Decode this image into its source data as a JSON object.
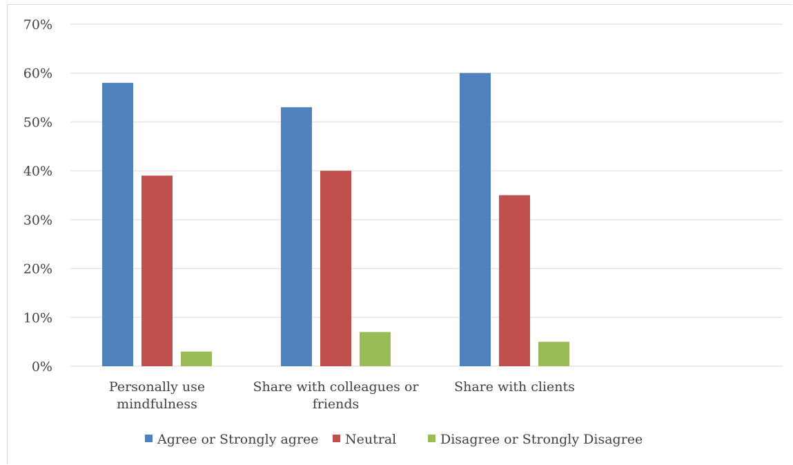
{
  "chart_data": {
    "type": "bar",
    "title": "",
    "xlabel": "",
    "ylabel": "",
    "categories": [
      [
        "Personally use",
        "mindfulness"
      ],
      [
        "Share with colleagues or",
        "friends"
      ],
      [
        "Share with clients"
      ]
    ],
    "series": [
      {
        "name": "Agree or Strongly agree",
        "color": "#4f81bd",
        "values": [
          58,
          53,
          60
        ]
      },
      {
        "name": "Neutral",
        "color": "#c0504d",
        "values": [
          39,
          40,
          35
        ]
      },
      {
        "name": "Disagree or Strongly Disagree",
        "color": "#9bbb59",
        "values": [
          3,
          7,
          5
        ]
      }
    ],
    "ylim": [
      0,
      70
    ],
    "yticks": [
      "0%",
      "10%",
      "20%",
      "30%",
      "40%",
      "50%",
      "60%",
      "70%"
    ],
    "grid": true,
    "legend_position": "bottom"
  }
}
